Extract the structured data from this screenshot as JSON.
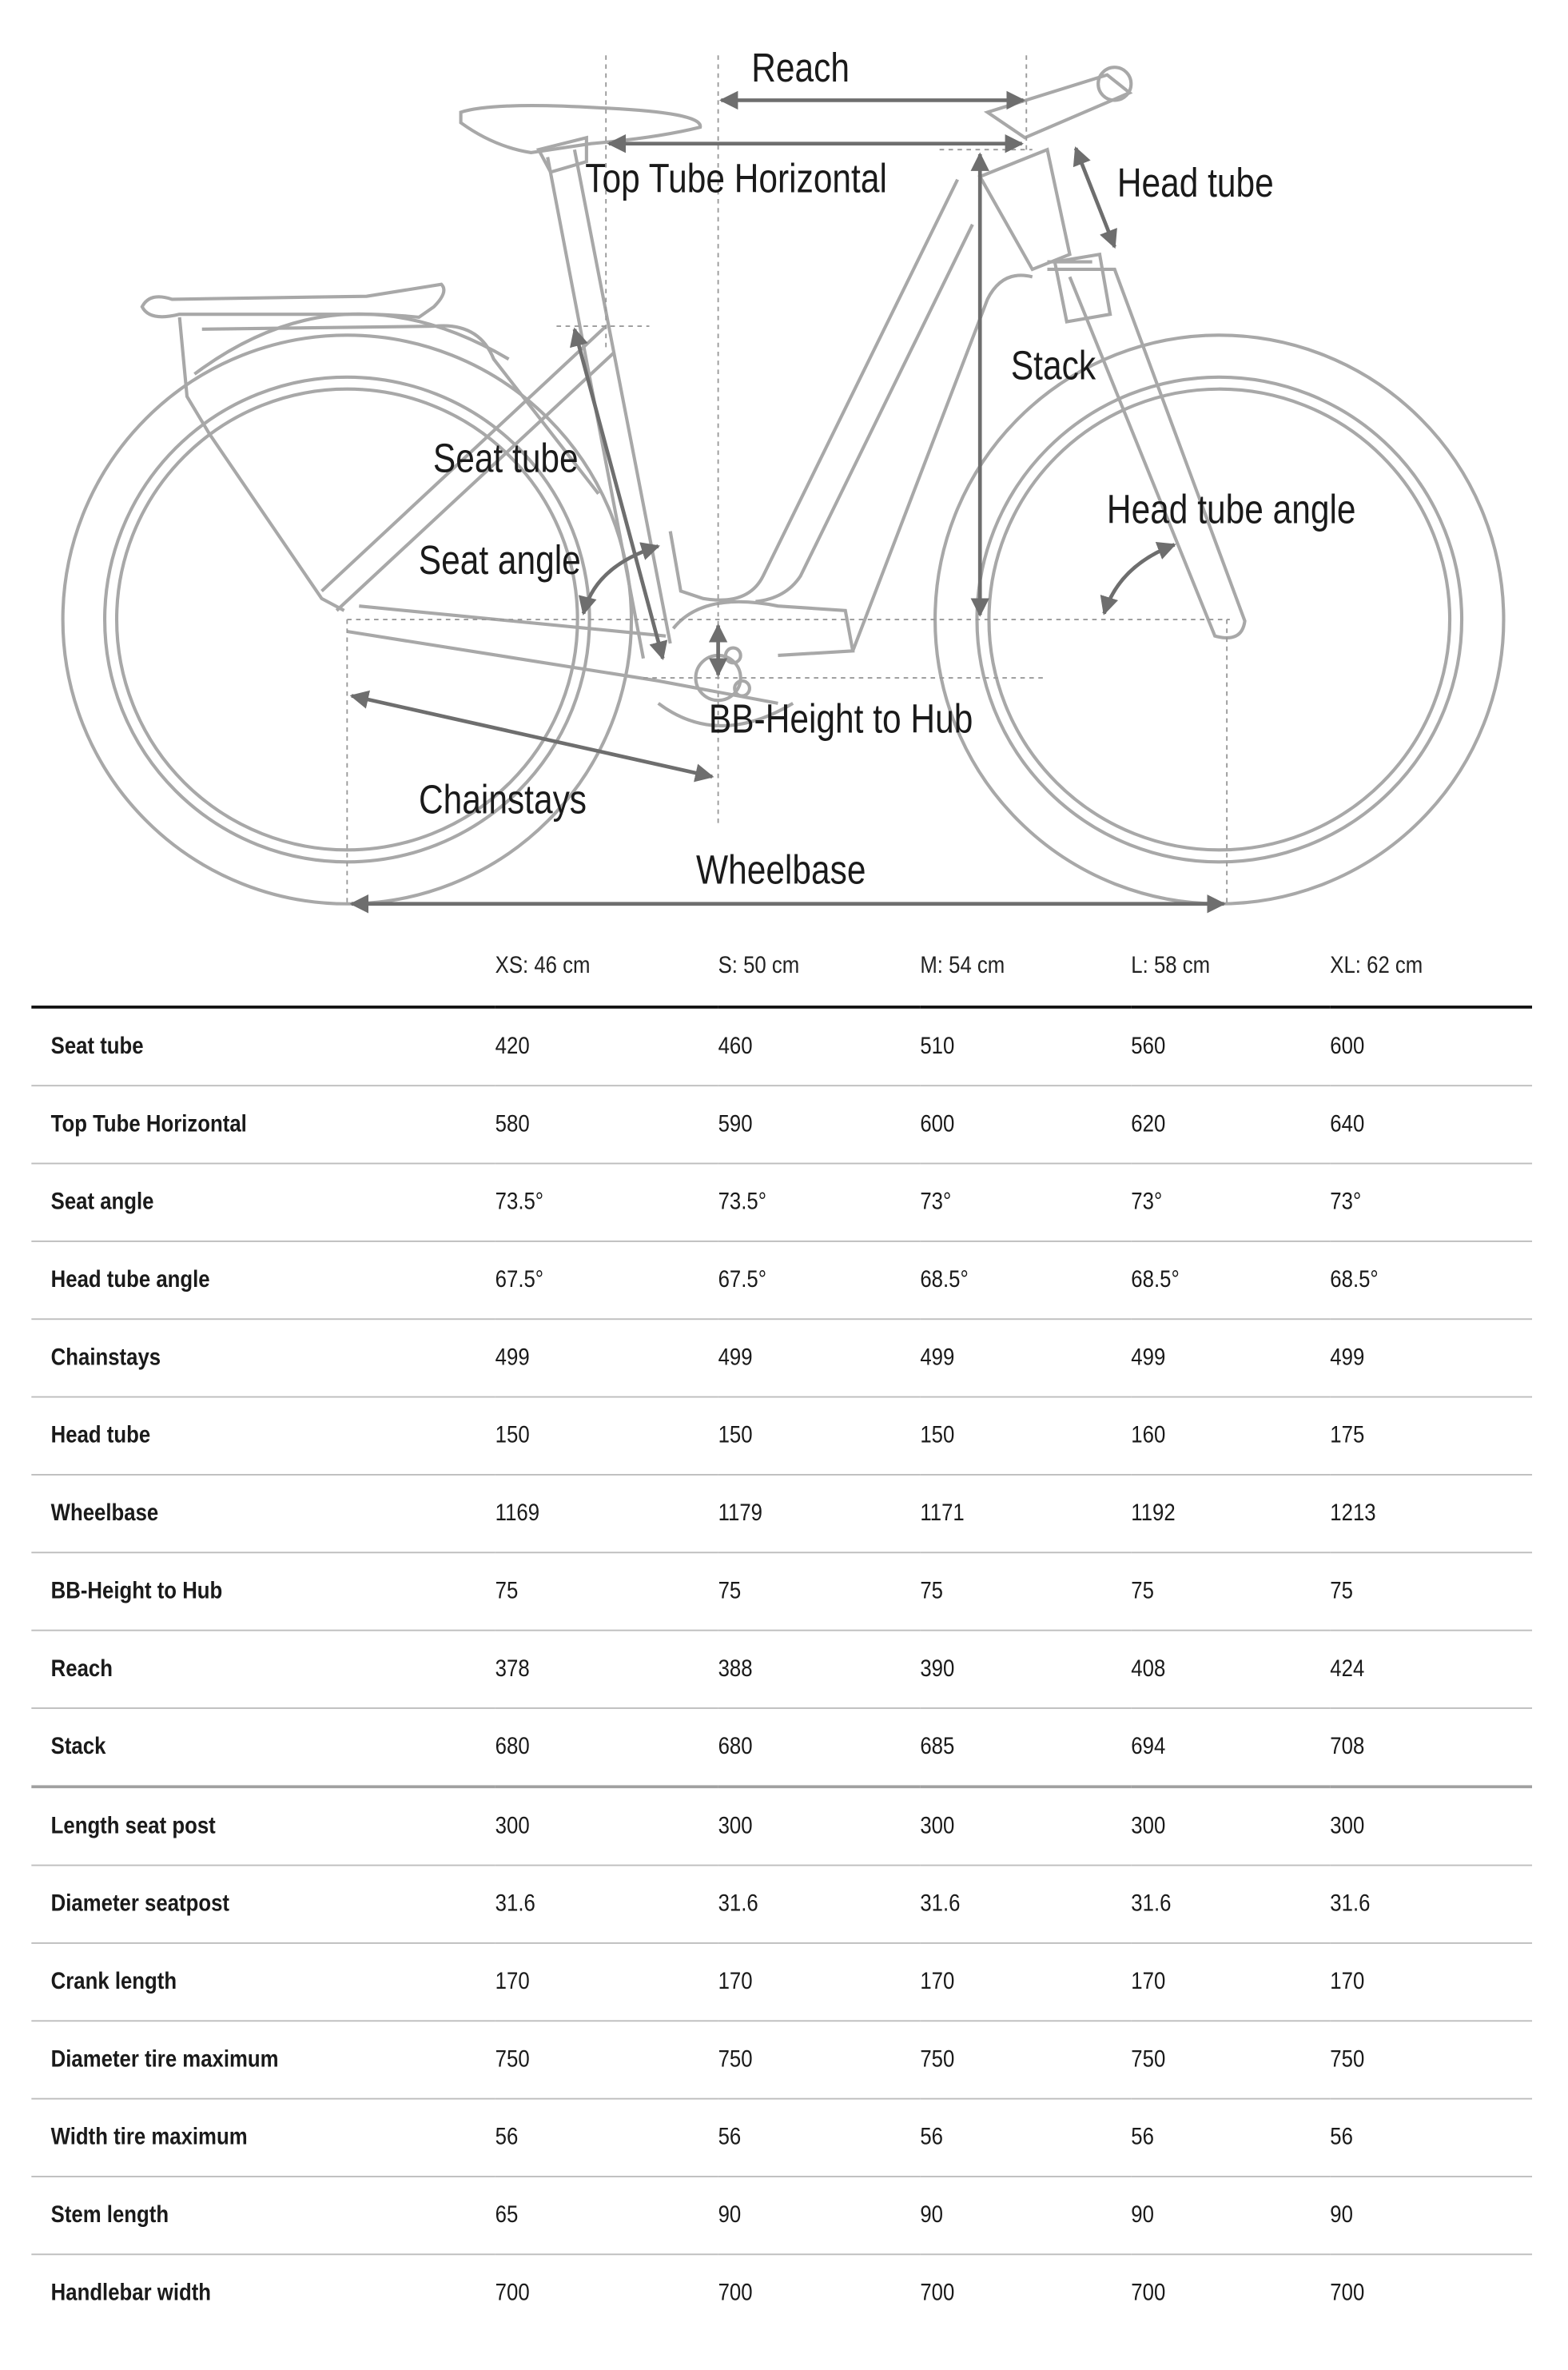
{
  "diagram": {
    "labels": {
      "reach": "Reach",
      "top_tube_horizontal": "Top Tube Horizontal",
      "head_tube": "Head tube",
      "stack": "Stack",
      "seat_tube": "Seat tube",
      "seat_angle": "Seat angle",
      "head_tube_angle": "Head tube angle",
      "bb_height": "BB-Height to Hub",
      "chainstays": "Chainstays",
      "wheelbase": "Wheelbase"
    },
    "colors": {
      "frame": "#a8a8a8",
      "arrow": "#6e6e6e",
      "dashed": "#9a9a9a"
    }
  },
  "table": {
    "columns": [
      "",
      "XS: 46 cm",
      "S: 50 cm",
      "M: 54 cm",
      "L: 58 cm",
      "XL: 62 cm"
    ],
    "rows": [
      [
        "Seat tube",
        "420",
        "460",
        "510",
        "560",
        "600"
      ],
      [
        "Top Tube Horizontal",
        "580",
        "590",
        "600",
        "620",
        "640"
      ],
      [
        "Seat angle",
        "73.5°",
        "73.5°",
        "73°",
        "73°",
        "73°"
      ],
      [
        "Head tube angle",
        "67.5°",
        "67.5°",
        "68.5°",
        "68.5°",
        "68.5°"
      ],
      [
        "Chainstays",
        "499",
        "499",
        "499",
        "499",
        "499"
      ],
      [
        "Head tube",
        "150",
        "150",
        "150",
        "160",
        "175"
      ],
      [
        "Wheelbase",
        "1169",
        "1179",
        "1171",
        "1192",
        "1213"
      ],
      [
        "BB-Height to Hub",
        "75",
        "75",
        "75",
        "75",
        "75"
      ],
      [
        "Reach",
        "378",
        "388",
        "390",
        "408",
        "424"
      ],
      [
        "Stack",
        "680",
        "680",
        "685",
        "694",
        "708"
      ],
      [
        "Length seat post",
        "300",
        "300",
        "300",
        "300",
        "300"
      ],
      [
        "Diameter seatpost",
        "31.6",
        "31.6",
        "31.6",
        "31.6",
        "31.6"
      ],
      [
        "Crank length",
        "170",
        "170",
        "170",
        "170",
        "170"
      ],
      [
        "Diameter tire maximum",
        "750",
        "750",
        "750",
        "750",
        "750"
      ],
      [
        "Width tire maximum",
        "56",
        "56",
        "56",
        "56",
        "56"
      ],
      [
        "Stem length",
        "65",
        "90",
        "90",
        "90",
        "90"
      ],
      [
        "Handlebar width",
        "700",
        "700",
        "700",
        "700",
        "700"
      ]
    ]
  }
}
